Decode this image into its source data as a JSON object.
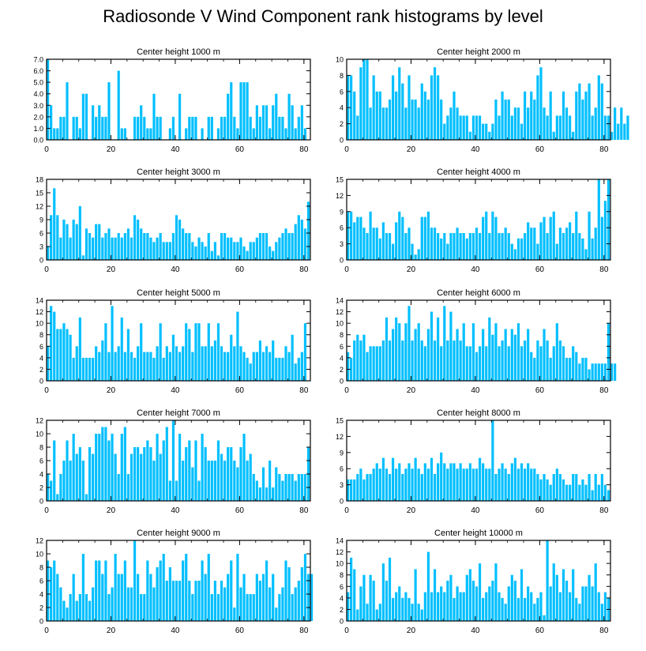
{
  "figure": {
    "title": "Radiosonde V Wind Component rank histograms by level",
    "bar_color": "#00BFFF",
    "bar_edge_color": "#ffffff",
    "axis_color": "#000000"
  },
  "chart_data": [
    {
      "type": "bar",
      "title": "Center height 1000 m",
      "xlabel": "",
      "ylabel": "",
      "xlim": [
        0,
        82
      ],
      "ylim": [
        0,
        7
      ],
      "xticks": [
        0,
        20,
        40,
        60,
        80
      ],
      "yticks": [
        0,
        1,
        2,
        3,
        4,
        5,
        6,
        7
      ],
      "ytick_labels": [
        "0.0",
        "1.0",
        "2.0",
        "3.0",
        "4.0",
        "5.0",
        "6.0",
        "7.0"
      ],
      "values": [
        7,
        3,
        1,
        1,
        2,
        2,
        5,
        0,
        2,
        2,
        1,
        4,
        4,
        0,
        3,
        2,
        3,
        2,
        2,
        5,
        0,
        0,
        6,
        1,
        1,
        0,
        0,
        2,
        2,
        3,
        2,
        1,
        1,
        4,
        2,
        2,
        0,
        0,
        1,
        2,
        0,
        4,
        0,
        1,
        2,
        2,
        2,
        0,
        1,
        0,
        2,
        2,
        0,
        1,
        2,
        2,
        4,
        5,
        2,
        1,
        5,
        5,
        5,
        2,
        1,
        3,
        2,
        3,
        3,
        1,
        3,
        4,
        2,
        2,
        1,
        4,
        3,
        1,
        2,
        3,
        1
      ]
    },
    {
      "type": "bar",
      "title": "Center height 2000 m",
      "xlabel": "",
      "ylabel": "",
      "xlim": [
        0,
        82
      ],
      "ylim": [
        0,
        10
      ],
      "xticks": [
        0,
        20,
        40,
        60,
        80
      ],
      "yticks": [
        0,
        2,
        4,
        6,
        8,
        10
      ],
      "ytick_labels": [
        "0",
        "2",
        "4",
        "6",
        "8",
        "10"
      ],
      "values": [
        8,
        8,
        6,
        3,
        9,
        10,
        10,
        4,
        8,
        6,
        6,
        4,
        4,
        5,
        8,
        6,
        9,
        7,
        4,
        8,
        5,
        5,
        4,
        7,
        6,
        5,
        8,
        9,
        8,
        5,
        2,
        3,
        4,
        6,
        4,
        3,
        3,
        3,
        1,
        3,
        3,
        3,
        2,
        2,
        1,
        2,
        5,
        3,
        6,
        5,
        5,
        3,
        4,
        4,
        2,
        6,
        4,
        6,
        5,
        8,
        9,
        4,
        3,
        6,
        1,
        3,
        3,
        6,
        4,
        3,
        1,
        6,
        7,
        5,
        6,
        7,
        3,
        4,
        8,
        7,
        3,
        3,
        1,
        4,
        2,
        4,
        2,
        3
      ]
    },
    {
      "type": "bar",
      "title": "Center height 3000 m",
      "xlabel": "",
      "ylabel": "",
      "xlim": [
        0,
        82
      ],
      "ylim": [
        0,
        18
      ],
      "xticks": [
        0,
        20,
        40,
        60,
        80
      ],
      "yticks": [
        0,
        3,
        6,
        9,
        12,
        15,
        18
      ],
      "ytick_labels": [
        "0",
        "3",
        "6",
        "9",
        "12",
        "15",
        "18"
      ],
      "values": [
        3,
        10,
        16,
        10,
        5,
        9,
        8,
        5,
        9,
        8,
        12,
        1,
        7,
        6,
        5,
        8,
        8,
        5,
        6,
        7,
        5,
        5,
        6,
        5,
        6,
        7,
        5,
        10,
        9,
        7,
        6,
        6,
        5,
        4,
        5,
        6,
        4,
        4,
        4,
        6,
        10,
        9,
        7,
        6,
        6,
        4,
        3,
        5,
        4,
        3,
        6,
        2,
        4,
        1,
        6,
        6,
        5,
        5,
        4,
        4,
        5,
        3,
        2,
        4,
        4,
        5,
        6,
        6,
        6,
        3,
        2,
        4,
        5,
        6,
        7,
        6,
        6,
        8,
        10,
        9,
        7,
        13
      ]
    },
    {
      "type": "bar",
      "title": "Center height 4000 m",
      "xlabel": "",
      "ylabel": "",
      "xlim": [
        0,
        82
      ],
      "ylim": [
        0,
        15
      ],
      "xticks": [
        0,
        20,
        40,
        60,
        80
      ],
      "yticks": [
        0,
        3,
        6,
        9,
        12,
        15
      ],
      "ytick_labels": [
        "0",
        "3",
        "6",
        "9",
        "12",
        "15"
      ],
      "values": [
        9,
        9,
        7,
        8,
        8,
        6,
        5,
        9,
        6,
        6,
        4,
        7,
        5,
        5,
        3,
        7,
        9,
        8,
        5,
        6,
        3,
        1,
        2,
        8,
        8,
        9,
        6,
        6,
        5,
        4,
        5,
        3,
        5,
        5,
        6,
        5,
        5,
        4,
        5,
        5,
        6,
        5,
        8,
        9,
        5,
        9,
        8,
        5,
        5,
        6,
        5,
        3,
        2,
        4,
        4,
        5,
        7,
        6,
        6,
        3,
        7,
        8,
        5,
        8,
        9,
        3,
        6,
        5,
        6,
        7,
        5,
        9,
        5,
        4,
        2,
        9,
        4,
        6,
        15,
        8,
        11,
        15
      ]
    },
    {
      "type": "bar",
      "title": "Center height 5000 m",
      "xlabel": "",
      "ylabel": "",
      "xlim": [
        0,
        82
      ],
      "ylim": [
        0,
        14
      ],
      "xticks": [
        0,
        20,
        40,
        60,
        80
      ],
      "yticks": [
        0,
        2,
        4,
        6,
        8,
        10,
        12,
        14
      ],
      "ytick_labels": [
        "0",
        "2",
        "4",
        "6",
        "8",
        "10",
        "12",
        "14"
      ],
      "values": [
        6,
        13,
        12,
        9,
        9,
        10,
        9,
        8,
        4,
        6,
        11,
        4,
        4,
        4,
        4,
        6,
        5,
        7,
        10,
        5,
        13,
        5,
        6,
        11,
        5,
        9,
        5,
        4,
        6,
        10,
        5,
        5,
        5,
        4,
        6,
        10,
        4,
        6,
        5,
        8,
        6,
        5,
        6,
        10,
        9,
        5,
        10,
        10,
        6,
        6,
        10,
        6,
        7,
        10,
        6,
        5,
        5,
        8,
        6,
        12,
        6,
        5,
        4,
        3,
        5,
        5,
        7,
        5,
        6,
        5,
        7,
        4,
        4,
        4,
        6,
        5,
        8,
        3,
        4,
        5,
        10
      ]
    },
    {
      "type": "bar",
      "title": "Center height 6000 m",
      "xlabel": "",
      "ylabel": "",
      "xlim": [
        0,
        82
      ],
      "ylim": [
        0,
        14
      ],
      "xticks": [
        0,
        20,
        40,
        60,
        80
      ],
      "yticks": [
        0,
        2,
        4,
        6,
        8,
        10,
        12,
        14
      ],
      "ytick_labels": [
        "0",
        "2",
        "4",
        "6",
        "8",
        "10",
        "12",
        "14"
      ],
      "values": [
        5,
        4,
        7,
        8,
        7,
        8,
        5,
        6,
        6,
        6,
        6,
        7,
        11,
        7,
        9,
        11,
        10,
        7,
        10,
        13,
        7,
        9,
        10,
        7,
        6,
        9,
        12,
        7,
        11,
        6,
        13,
        7,
        12,
        7,
        9,
        7,
        10,
        6,
        6,
        10,
        5,
        6,
        9,
        6,
        11,
        8,
        10,
        6,
        7,
        9,
        6,
        9,
        8,
        10,
        6,
        7,
        9,
        5,
        4,
        7,
        6,
        9,
        7,
        4,
        6,
        10,
        7,
        6,
        4,
        4,
        6,
        5,
        3,
        4,
        4,
        2,
        3,
        3,
        3,
        3,
        3,
        10,
        3,
        3
      ]
    },
    {
      "type": "bar",
      "title": "Center height 7000 m",
      "xlabel": "",
      "ylabel": "",
      "xlim": [
        0,
        82
      ],
      "ylim": [
        0,
        12
      ],
      "xticks": [
        0,
        20,
        40,
        60,
        80
      ],
      "yticks": [
        0,
        2,
        4,
        6,
        8,
        10,
        12
      ],
      "ytick_labels": [
        "0",
        "2",
        "4",
        "6",
        "8",
        "10",
        "12"
      ],
      "values": [
        4,
        3,
        9,
        1,
        4,
        6,
        9,
        6,
        10,
        7,
        8,
        6,
        1,
        8,
        7,
        10,
        10,
        11,
        11,
        9,
        10,
        7,
        4,
        10,
        11,
        4,
        7,
        8,
        8,
        7,
        8,
        9,
        8,
        6,
        10,
        7,
        9,
        11,
        3,
        12,
        3,
        10,
        6,
        8,
        9,
        5,
        9,
        3,
        10,
        8,
        6,
        6,
        6,
        9,
        7,
        6,
        8,
        8,
        6,
        5,
        8,
        10,
        6,
        7,
        4,
        3,
        2,
        5,
        2,
        6,
        2,
        5,
        4,
        3,
        4,
        4,
        4,
        3,
        4,
        4,
        4,
        8
      ]
    },
    {
      "type": "bar",
      "title": "Center height 8000 m",
      "xlabel": "",
      "ylabel": "",
      "xlim": [
        0,
        82
      ],
      "ylim": [
        0,
        15
      ],
      "xticks": [
        0,
        20,
        40,
        60,
        80
      ],
      "yticks": [
        0,
        3,
        6,
        9,
        12,
        15
      ],
      "ytick_labels": [
        "0",
        "3",
        "6",
        "9",
        "12",
        "15"
      ],
      "values": [
        4,
        4,
        4,
        5,
        6,
        4,
        5,
        5,
        6,
        7,
        6,
        8,
        6,
        5,
        8,
        6,
        7,
        5,
        6,
        7,
        6,
        8,
        6,
        5,
        7,
        6,
        8,
        5,
        7,
        9,
        7,
        6,
        7,
        7,
        6,
        7,
        6,
        6,
        7,
        6,
        6,
        8,
        7,
        6,
        6,
        15,
        5,
        6,
        7,
        6,
        5,
        7,
        8,
        6,
        7,
        6,
        7,
        6,
        6,
        5,
        4,
        5,
        4,
        3,
        5,
        6,
        5,
        4,
        3,
        3,
        5,
        5,
        3,
        4,
        3,
        5,
        2,
        5,
        3,
        5,
        3,
        2
      ]
    },
    {
      "type": "bar",
      "title": "Center height 9000 m",
      "xlabel": "",
      "ylabel": "",
      "xlim": [
        0,
        82
      ],
      "ylim": [
        0,
        12
      ],
      "xticks": [
        0,
        20,
        40,
        60,
        80
      ],
      "yticks": [
        0,
        2,
        4,
        6,
        8,
        10,
        12
      ],
      "ytick_labels": [
        "0",
        "2",
        "4",
        "6",
        "8",
        "10",
        "12"
      ],
      "values": [
        9,
        8,
        9,
        7,
        5,
        3,
        2,
        4,
        7,
        3,
        4,
        10,
        4,
        3,
        5,
        9,
        9,
        7,
        9,
        4,
        5,
        10,
        7,
        7,
        9,
        5,
        5,
        12,
        7,
        4,
        4,
        9,
        7,
        5,
        8,
        9,
        10,
        6,
        8,
        6,
        6,
        6,
        9,
        10,
        6,
        4,
        6,
        6,
        9,
        7,
        10,
        4,
        6,
        4,
        6,
        5,
        7,
        9,
        2,
        10,
        5,
        7,
        4,
        4,
        4,
        7,
        6,
        7,
        9,
        5,
        7,
        2,
        4,
        5,
        9,
        8,
        4,
        5,
        6,
        8,
        10,
        7,
        7
      ]
    },
    {
      "type": "bar",
      "title": "Center height 10000 m",
      "xlabel": "",
      "ylabel": "",
      "xlim": [
        0,
        82
      ],
      "ylim": [
        0,
        14
      ],
      "xticks": [
        0,
        20,
        40,
        60,
        80
      ],
      "yticks": [
        0,
        2,
        4,
        6,
        8,
        10,
        12,
        14
      ],
      "ytick_labels": [
        "0",
        "2",
        "4",
        "6",
        "8",
        "10",
        "12",
        "14"
      ],
      "values": [
        5,
        11,
        9,
        2,
        6,
        8,
        3,
        8,
        7,
        2,
        3,
        10,
        7,
        11,
        4,
        5,
        6,
        4,
        5,
        4,
        3,
        9,
        3,
        2,
        5,
        12,
        5,
        9,
        5,
        6,
        5,
        7,
        8,
        4,
        6,
        5,
        5,
        8,
        9,
        7,
        6,
        10,
        4,
        5,
        6,
        7,
        10,
        5,
        4,
        3,
        6,
        8,
        7,
        4,
        9,
        4,
        6,
        5,
        3,
        4,
        5,
        1,
        14,
        6,
        10,
        8,
        5,
        9,
        7,
        5,
        9,
        4,
        3,
        6,
        6,
        8,
        6,
        10,
        5,
        3,
        5,
        4
      ]
    }
  ]
}
